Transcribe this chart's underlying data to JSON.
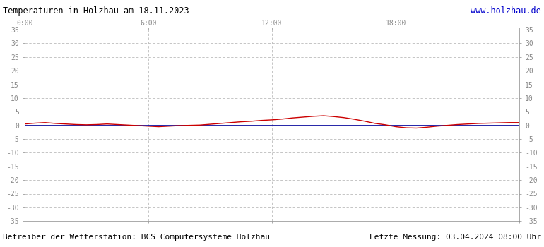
{
  "title": "Temperaturen in Holzhau am 18.11.2023",
  "url_text": "www.holzhau.de",
  "footer_left": "Betreiber der Wetterstation: BCS Computersysteme Holzhau",
  "footer_right": "Letzte Messung: 03.04.2024 08:00 Uhr",
  "xlim": [
    0,
    1440
  ],
  "ylim": [
    -35,
    35
  ],
  "yticks": [
    -35,
    -30,
    -25,
    -20,
    -15,
    -10,
    -5,
    0,
    5,
    10,
    15,
    20,
    25,
    30,
    35
  ],
  "xticks": [
    0,
    360,
    720,
    1080,
    1440
  ],
  "xtick_labels": [
    "0:00",
    "6:00",
    "12:00",
    "18:00",
    ""
  ],
  "grid_color": "#bbbbbb",
  "bg_color": "#ffffff",
  "plot_bg_color": "#ffffff",
  "title_color": "#000000",
  "url_color": "#0000cc",
  "footer_color": "#000000",
  "line1_color": "#cc0000",
  "line2_color": "#000099",
  "red_data_x": [
    0,
    30,
    60,
    90,
    120,
    150,
    180,
    210,
    240,
    270,
    300,
    330,
    360,
    390,
    420,
    450,
    480,
    510,
    540,
    570,
    600,
    630,
    660,
    690,
    720,
    750,
    780,
    810,
    840,
    870,
    900,
    930,
    960,
    990,
    1020,
    1050,
    1080,
    1110,
    1140,
    1170,
    1200,
    1230,
    1260,
    1290,
    1320,
    1350,
    1380,
    1410,
    1440
  ],
  "red_data_y": [
    0.5,
    0.8,
    1.0,
    0.7,
    0.5,
    0.3,
    0.2,
    0.3,
    0.5,
    0.3,
    0.1,
    -0.1,
    -0.3,
    -0.5,
    -0.3,
    -0.1,
    0.0,
    0.1,
    0.4,
    0.7,
    1.0,
    1.3,
    1.5,
    1.8,
    2.0,
    2.3,
    2.7,
    3.0,
    3.3,
    3.5,
    3.2,
    2.8,
    2.2,
    1.5,
    0.7,
    0.2,
    -0.5,
    -0.9,
    -1.0,
    -0.7,
    -0.3,
    0.0,
    0.3,
    0.5,
    0.7,
    0.8,
    0.9,
    1.0,
    1.0
  ],
  "blue_data_x": [
    0,
    30,
    60,
    90,
    120,
    150,
    180,
    210,
    240,
    270,
    300,
    330,
    360,
    390,
    420,
    450,
    480,
    510,
    540,
    570,
    600,
    630,
    660,
    690,
    720,
    750,
    780,
    810,
    840,
    870,
    900,
    930,
    960,
    990,
    1020,
    1050,
    1080,
    1110,
    1140,
    1170,
    1200,
    1230,
    1260,
    1290,
    1320,
    1350,
    1380,
    1410,
    1440
  ],
  "blue_data_y": [
    0.0,
    0.0,
    0.0,
    0.0,
    0.0,
    0.0,
    0.0,
    0.0,
    0.0,
    0.0,
    0.0,
    0.0,
    0.0,
    0.0,
    0.0,
    0.0,
    0.0,
    0.0,
    0.0,
    0.0,
    0.0,
    0.0,
    0.0,
    0.0,
    0.0,
    0.0,
    0.0,
    0.0,
    0.0,
    0.0,
    0.0,
    0.0,
    0.0,
    0.0,
    0.0,
    0.0,
    0.0,
    0.0,
    0.0,
    0.0,
    0.0,
    0.0,
    0.0,
    0.0,
    0.0,
    0.0,
    0.0,
    0.0,
    0.0
  ]
}
